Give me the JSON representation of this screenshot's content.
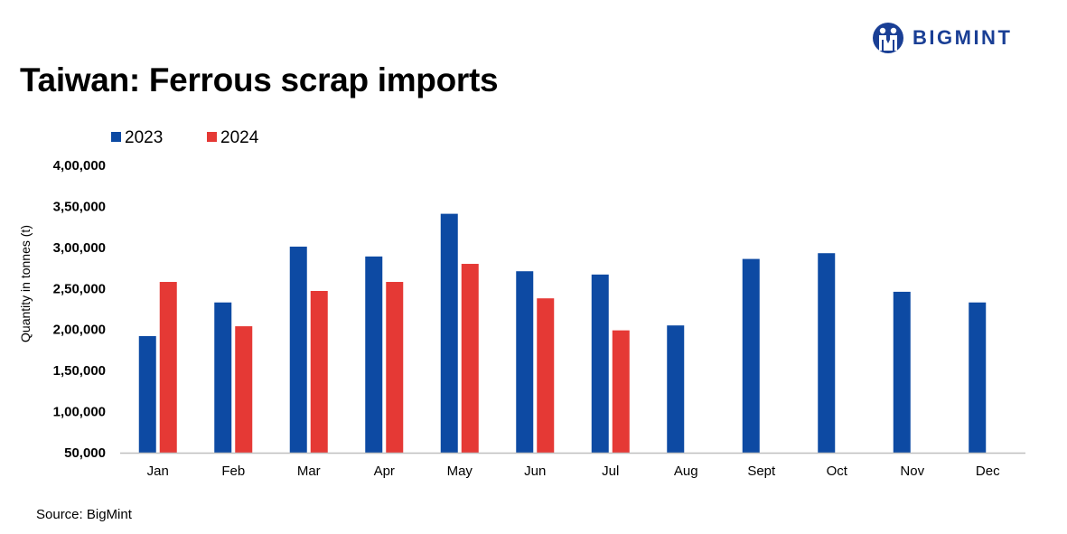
{
  "brand": {
    "name": "BIGMINT"
  },
  "source": "Source: BigMint",
  "colors": {
    "series_2023": "#0d4aa3",
    "series_2024": "#e53935",
    "brand": "#1a3f95",
    "axis": "#bfbfbf"
  },
  "chart_data": {
    "type": "bar",
    "title": "Taiwan: Ferrous scrap imports",
    "ylabel": "Quantity in tonnes (t)",
    "xlabel": "",
    "categories": [
      "Jan",
      "Feb",
      "Mar",
      "Apr",
      "May",
      "Jun",
      "Jul",
      "Aug",
      "Sept",
      "Oct",
      "Nov",
      "Dec"
    ],
    "series": [
      {
        "name": "2023",
        "values": [
          192000,
          233000,
          301000,
          289000,
          341000,
          271000,
          267000,
          205000,
          286000,
          293000,
          246000,
          233000
        ]
      },
      {
        "name": "2024",
        "values": [
          258000,
          204000,
          247000,
          258000,
          280000,
          238000,
          199000,
          null,
          null,
          null,
          null,
          null
        ]
      }
    ],
    "ylim": [
      50000,
      400000
    ],
    "yticks": [
      50000,
      100000,
      150000,
      200000,
      250000,
      300000,
      350000,
      400000
    ],
    "ytick_labels": [
      "50,000",
      "1,00,000",
      "1,50,000",
      "2,00,000",
      "2,50,000",
      "3,00,000",
      "3,50,000",
      "4,00,000"
    ],
    "legend_position": "top-left",
    "grid": false
  }
}
